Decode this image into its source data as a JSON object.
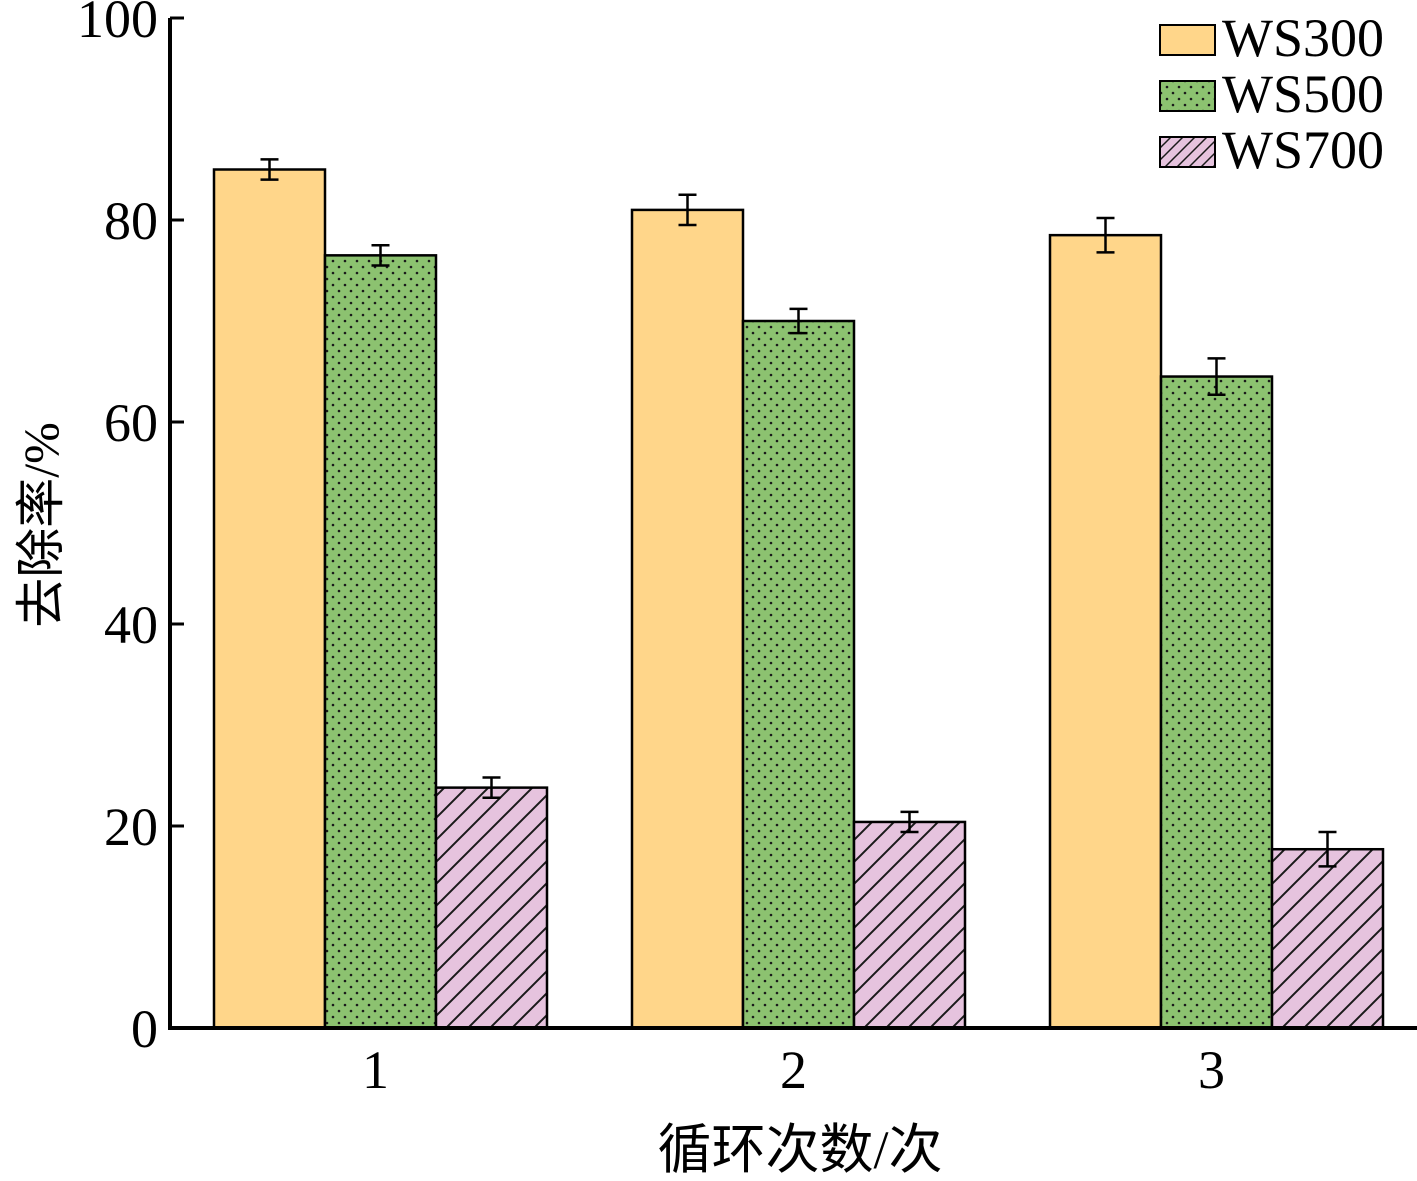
{
  "chart_data": {
    "type": "bar",
    "xlabel": "循环次数/次",
    "ylabel": "去除率/%",
    "categories": [
      "1",
      "2",
      "3"
    ],
    "ylim": [
      0,
      100
    ],
    "yticks": [
      "0",
      "20",
      "40",
      "60",
      "80",
      "100"
    ],
    "series": [
      {
        "name": "WS300",
        "values": [
          85.0,
          81.0,
          78.5
        ],
        "errors": [
          1.0,
          1.5,
          1.7
        ],
        "color": "#FFD68A",
        "pattern": "solid"
      },
      {
        "name": "WS500",
        "values": [
          76.5,
          70.0,
          64.5
        ],
        "errors": [
          1.0,
          1.2,
          1.8
        ],
        "color": "#8CC270",
        "pattern": "dots"
      },
      {
        "name": "WS700",
        "values": [
          23.8,
          20.4,
          17.7
        ],
        "errors": [
          1.0,
          1.0,
          1.7
        ],
        "color": "#E6C3DE",
        "pattern": "hatch"
      }
    ],
    "legend_position": "top-right",
    "grid": false
  }
}
